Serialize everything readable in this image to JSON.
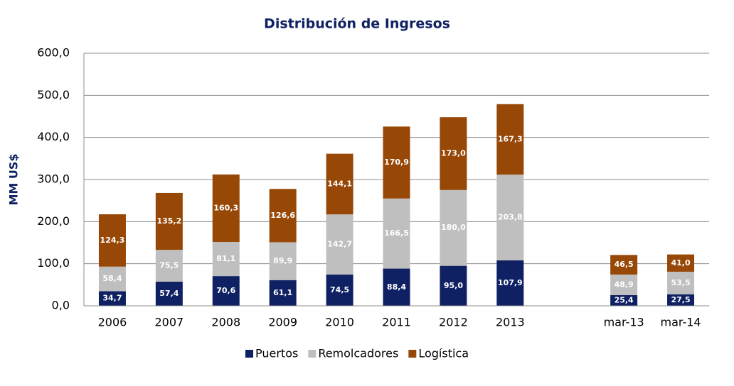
{
  "chart_data": {
    "type": "stacked_bar",
    "title": "Distribución de Ingresos",
    "y_label": "MM US$",
    "categories": [
      "2006",
      "2007",
      "2008",
      "2009",
      "2010",
      "2011",
      "2012",
      "2013",
      null,
      "mar-13",
      "mar-14"
    ],
    "series": [
      {
        "name": "Puertos",
        "color": "#0f2163",
        "label_color": "#ffffff",
        "values": [
          34.7,
          57.4,
          70.6,
          61.1,
          74.5,
          88.4,
          95.0,
          107.9,
          null,
          25.4,
          27.5
        ],
        "value_labels": [
          "34,7",
          "57,4",
          "70,6",
          "61,1",
          "74,5",
          "88,4",
          "95,0",
          "107,9",
          null,
          "25,4",
          "27,5"
        ]
      },
      {
        "name": "Remolcadores",
        "color": "#bfbfbf",
        "label_color": "#ffffff",
        "values": [
          58.4,
          75.5,
          81.1,
          89.9,
          142.7,
          166.5,
          180.0,
          203.8,
          null,
          48.9,
          53.5
        ],
        "value_labels": [
          "58,4",
          "75,5",
          "81,1",
          "89,9",
          "142,7",
          "166,5",
          "180,0",
          "203,8",
          null,
          "48,9",
          "53,5"
        ]
      },
      {
        "name": "Logística",
        "color": "#974706",
        "label_color": "#ffffff",
        "values": [
          124.3,
          135.2,
          160.3,
          126.6,
          144.1,
          170.9,
          173.0,
          167.3,
          null,
          46.5,
          41.0
        ],
        "value_labels": [
          "124,3",
          "135,2",
          "160,3",
          "126,6",
          "144,1",
          "170,9",
          "173,0",
          "167,3",
          null,
          "46,5",
          "41,0"
        ]
      }
    ],
    "ylim": [
      0,
      600
    ],
    "yticks": [
      {
        "value": 0,
        "label": "0,0"
      },
      {
        "value": 100,
        "label": "100,0"
      },
      {
        "value": 200,
        "label": "200,0"
      },
      {
        "value": 300,
        "label": "300,0"
      },
      {
        "value": 400,
        "label": "400,0"
      },
      {
        "value": 500,
        "label": "500,0"
      },
      {
        "value": 600,
        "label": "600,0"
      }
    ],
    "grid": true,
    "legend": "bottom"
  }
}
